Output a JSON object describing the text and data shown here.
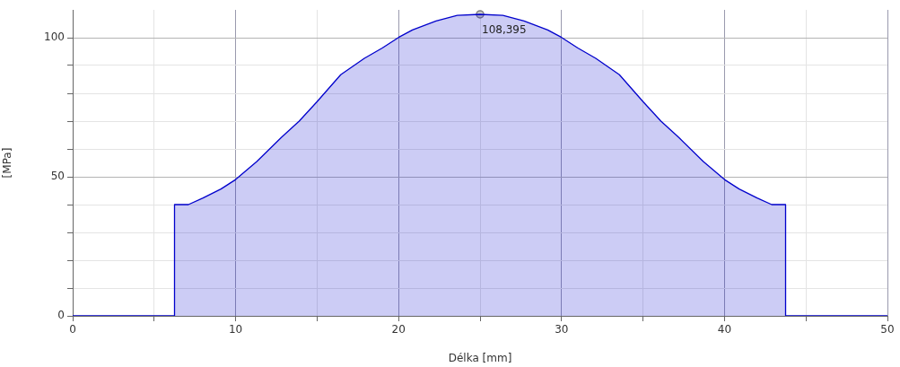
{
  "chart_data": {
    "type": "area",
    "xlabel": "Délka [mm]",
    "ylabel": "[MPa]",
    "xlim": [
      0,
      50
    ],
    "ylim": [
      0,
      110
    ],
    "xticks": [
      0,
      {
        "value": 5,
        "label": null
      },
      10,
      {
        "value": 15,
        "label": null
      },
      20,
      {
        "value": 25,
        "label": null
      },
      30,
      {
        "value": 35,
        "label": null
      },
      40,
      {
        "value": 45,
        "label": null
      },
      50
    ],
    "yticks": [
      0,
      {
        "value": 10,
        "label": null
      },
      {
        "value": 20,
        "label": null
      },
      {
        "value": 30,
        "label": null
      },
      {
        "value": 40,
        "label": null
      },
      50,
      {
        "value": 60,
        "label": null
      },
      {
        "value": 70,
        "label": null
      },
      {
        "value": 80,
        "label": null
      },
      {
        "value": 90,
        "label": null
      },
      100
    ],
    "grid": true,
    "marker": "none",
    "line_style": "solid",
    "series": [
      {
        "color": "#0000cc",
        "x": [
          0,
          6.25,
          6.25,
          7.1,
          8.0,
          9.1,
          10.0,
          11.3,
          12.8,
          13.9,
          15.0,
          16.45,
          17.9,
          19.0,
          20.0,
          20.85,
          22.3,
          23.6,
          25,
          26.4,
          27.7,
          29.15,
          30.0,
          31.0,
          32.1,
          33.55,
          35.0,
          36.1,
          37.2,
          38.7,
          40.0,
          40.9,
          42.0,
          42.9,
          43.75,
          43.75,
          50
        ],
        "values": [
          0,
          0,
          40,
          40,
          42.4,
          45.6,
          49,
          55.5,
          64.1,
          70,
          77,
          86.7,
          92.6,
          96.3,
          100.1,
          102.8,
          106,
          108,
          108.395,
          108,
          106,
          102.8,
          100.1,
          96.3,
          92.6,
          86.7,
          77,
          70,
          64.1,
          55.5,
          49,
          45.6,
          42.4,
          40,
          40,
          0,
          0
        ]
      },
      {
        "type": "scatter",
        "color": "#808080",
        "marker": "circle",
        "x": [
          25
        ],
        "values": [
          108.395
        ]
      }
    ],
    "annotations": [
      {
        "text": "108,395",
        "x": 25,
        "y": 108.395
      }
    ]
  }
}
